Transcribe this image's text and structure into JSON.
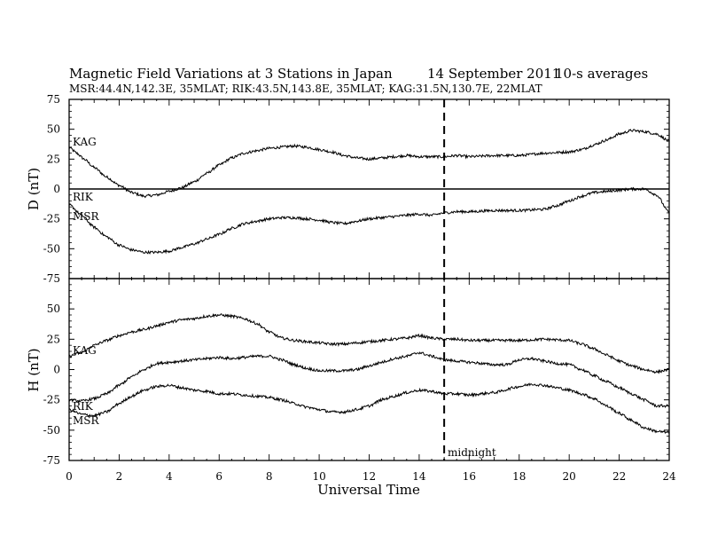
{
  "header": {
    "title": "Magnetic Field Variations at 3 Stations in Japan",
    "date": "14 September 2011",
    "averaging": "10-s averages",
    "stations": "MSR:44.4N,142.3E, 35MLAT;  RIK:43.5N,143.8E, 35MLAT;  KAG:31.5N,130.7E, 22MLAT"
  },
  "chart_data": [
    {
      "type": "line",
      "panel": "top",
      "ylabel": "D (nT)",
      "xlim": [
        0,
        24
      ],
      "ylim": [
        -75,
        75
      ],
      "yticks": [
        75,
        50,
        25,
        0,
        -25,
        -50,
        -75
      ],
      "zero_line": true,
      "series": [
        {
          "name": "KAG",
          "x": [
            0,
            0.3,
            0.6,
            1,
            1.5,
            2,
            2.5,
            3,
            3.5,
            4,
            4.5,
            5,
            5.5,
            6,
            6.5,
            7,
            7.5,
            8,
            8.5,
            9,
            9.5,
            10,
            10.5,
            11,
            11.5,
            12,
            12.5,
            13,
            13.5,
            14,
            14.5,
            15,
            15.5,
            16,
            17,
            18,
            19,
            20,
            20.5,
            21,
            21.5,
            22,
            22.5,
            23,
            23.5,
            24
          ],
          "y": [
            35,
            30,
            25,
            18,
            10,
            3,
            -3,
            -6,
            -5,
            -2,
            1,
            6,
            13,
            20,
            26,
            30,
            32,
            34,
            35,
            36,
            35,
            33,
            31,
            28,
            26,
            25,
            26,
            27,
            28,
            27,
            27,
            27,
            28,
            27,
            28,
            28,
            30,
            31,
            33,
            37,
            41,
            46,
            49,
            48,
            46,
            40
          ]
        },
        {
          "name": "RIK",
          "x": [
            0,
            24
          ],
          "y": [
            0,
            0
          ]
        },
        {
          "name": "MSR",
          "x": [
            0,
            0.5,
            1,
            1.5,
            2,
            2.5,
            3,
            3.5,
            4,
            4.5,
            5,
            5.5,
            6,
            6.5,
            7,
            7.5,
            8,
            8.5,
            9,
            9.5,
            10,
            10.5,
            11,
            11.5,
            12,
            12.5,
            13,
            13.5,
            14,
            14.5,
            15,
            15.5,
            16,
            17,
            18,
            19,
            19.5,
            20,
            20.5,
            21,
            21.5,
            22,
            22.5,
            23,
            23.5,
            24
          ],
          "y": [
            -13,
            -22,
            -32,
            -40,
            -47,
            -51,
            -53,
            -53,
            -52,
            -49,
            -46,
            -42,
            -38,
            -33,
            -29,
            -27,
            -25,
            -24,
            -24,
            -25,
            -26,
            -28,
            -29,
            -27,
            -25,
            -24,
            -23,
            -22,
            -21,
            -22,
            -20,
            -19,
            -19,
            -18,
            -18,
            -17,
            -14,
            -10,
            -6,
            -3,
            -2,
            -1,
            0,
            0,
            -5,
            -20
          ]
        }
      ]
    },
    {
      "type": "line",
      "panel": "bottom",
      "ylabel": "H (nT)",
      "xlabel": "Universal Time",
      "xlim": [
        0,
        24
      ],
      "ylim": [
        -75,
        75
      ],
      "xticks": [
        0,
        2,
        4,
        6,
        8,
        10,
        12,
        14,
        16,
        18,
        20,
        22,
        24
      ],
      "yticks": [
        50,
        25,
        0,
        -25,
        -50,
        -75
      ],
      "series": [
        {
          "name": "KAG",
          "x": [
            0,
            0.5,
            1,
            1.5,
            2,
            2.5,
            3,
            3.5,
            4,
            4.5,
            5,
            5.5,
            6,
            6.5,
            7,
            7.5,
            8,
            8.5,
            9,
            9.5,
            10,
            10.5,
            11,
            11.5,
            12,
            12.5,
            13,
            13.5,
            14,
            14.5,
            15,
            15.5,
            16,
            17,
            18,
            19,
            20,
            20.5,
            21,
            21.5,
            22,
            22.5,
            23,
            23.5,
            24
          ],
          "y": [
            11,
            14,
            20,
            24,
            28,
            31,
            33,
            36,
            39,
            41,
            42,
            44,
            45,
            44,
            42,
            38,
            31,
            26,
            24,
            23,
            22,
            21,
            21,
            22,
            23,
            24,
            25,
            26,
            28,
            26,
            25,
            25,
            24,
            24,
            24,
            25,
            24,
            21,
            17,
            12,
            7,
            3,
            0,
            -2,
            0
          ]
        },
        {
          "name": "RIK",
          "x": [
            0,
            0.5,
            1,
            1.5,
            2,
            2.5,
            3,
            3.5,
            4,
            4.5,
            5,
            5.5,
            6,
            6.5,
            7,
            7.5,
            8,
            8.5,
            9,
            9.5,
            10,
            10.5,
            11,
            11.5,
            12,
            12.5,
            13,
            13.5,
            14,
            14.5,
            15,
            15.5,
            16,
            17,
            17.5,
            18,
            18.5,
            19,
            19.5,
            20,
            20.5,
            21,
            21.5,
            22,
            22.5,
            23,
            23.5,
            24
          ],
          "y": [
            -25,
            -26,
            -24,
            -20,
            -13,
            -6,
            0,
            5,
            6,
            7,
            8,
            9,
            10,
            9,
            10,
            11,
            11,
            8,
            4,
            1,
            -1,
            -1,
            -1,
            0,
            3,
            6,
            9,
            11,
            14,
            11,
            8,
            7,
            6,
            4,
            4,
            8,
            9,
            7,
            5,
            4,
            0,
            -5,
            -10,
            -15,
            -20,
            -25,
            -30,
            -30
          ]
        },
        {
          "name": "MSR",
          "x": [
            0,
            0.5,
            1,
            1.5,
            2,
            2.5,
            3,
            3.5,
            4,
            4.5,
            5,
            5.5,
            6,
            6.5,
            7,
            7.5,
            8,
            8.5,
            9,
            9.5,
            10,
            10.5,
            11,
            11.5,
            12,
            12.5,
            13,
            13.5,
            14,
            14.5,
            15,
            15.5,
            16,
            17,
            18,
            18.5,
            19,
            19.5,
            20,
            20.5,
            21,
            21.5,
            22,
            22.5,
            23,
            23.5,
            24
          ],
          "y": [
            -33,
            -37,
            -38,
            -35,
            -28,
            -22,
            -17,
            -14,
            -13,
            -15,
            -17,
            -18,
            -20,
            -20,
            -21,
            -22,
            -23,
            -25,
            -28,
            -31,
            -33,
            -35,
            -35,
            -33,
            -30,
            -25,
            -22,
            -19,
            -17,
            -18,
            -20,
            -20,
            -21,
            -19,
            -14,
            -12,
            -13,
            -15,
            -17,
            -20,
            -24,
            -30,
            -36,
            -42,
            -48,
            -51,
            -52
          ]
        }
      ]
    }
  ],
  "marker": {
    "x": 15,
    "label": "midnight"
  }
}
